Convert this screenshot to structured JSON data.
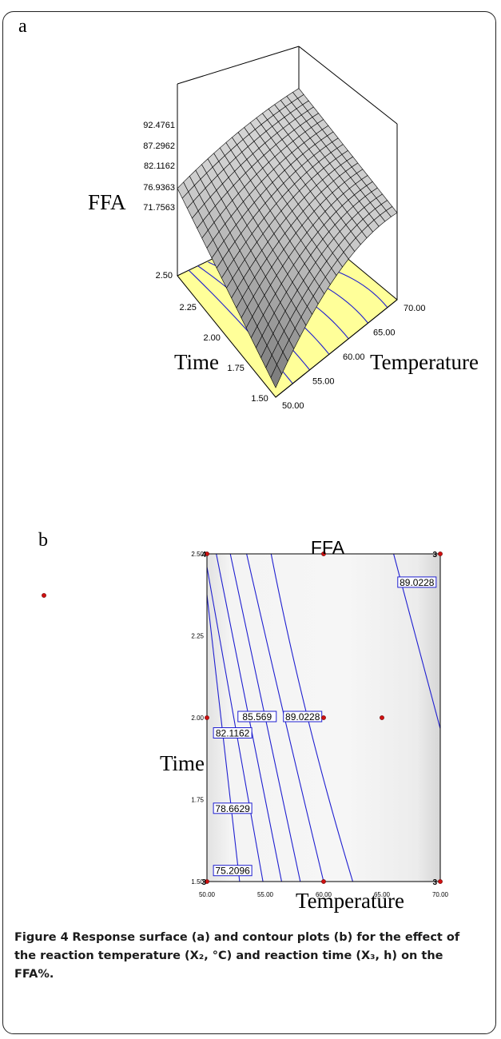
{
  "panel_a_label": "a",
  "panel_b_label": "b",
  "caption": {
    "figure_label": "Figure 4",
    "text": "Response surface (a) and contour plots (b) for the effect of the reaction temperature (X₂, °C) and reaction time (X₃, h) on the FFA%."
  },
  "chart_data": [
    {
      "type": "surface",
      "zlabel": "FFA",
      "xlabel": "Temperature",
      "ylabel": "Time",
      "x_ticks": [
        "50.00",
        "55.00",
        "60.00",
        "65.00",
        "70.00"
      ],
      "y_ticks": [
        "1.50",
        "1.75",
        "2.00",
        "2.25",
        "2.50"
      ],
      "z_ticks": [
        "71.7563",
        "76.9363",
        "82.1162",
        "87.2962",
        "92.4761"
      ],
      "xlim": [
        50,
        70
      ],
      "ylim": [
        1.5,
        2.5
      ],
      "zlim": [
        71.7563,
        92.4761
      ],
      "surface_color": "#a9a9a9",
      "floor_color": "#ffff99",
      "contour_color": "#1f1fd0"
    },
    {
      "type": "contour",
      "title": "FFA",
      "xlabel": "Temperature",
      "ylabel": "Time",
      "x_ticks": [
        "50.00",
        "55.00",
        "60.00",
        "65.00",
        "70.00"
      ],
      "y_ticks": [
        "1.50",
        "1.75",
        "2.00",
        "2.25",
        "2.50"
      ],
      "xlim": [
        50,
        70
      ],
      "ylim": [
        1.5,
        2.5
      ],
      "contour_labels": [
        "75.2096",
        "78.6629",
        "82.1162",
        "85.569",
        "89.0228",
        "89.0228"
      ],
      "design_points": [
        {
          "x": 50,
          "y": 2.5,
          "count": "4"
        },
        {
          "x": 60,
          "y": 2.5
        },
        {
          "x": 70,
          "y": 2.5,
          "count": "3"
        },
        {
          "x": 50,
          "y": 2.0
        },
        {
          "x": 60,
          "y": 2.0
        },
        {
          "x": 65,
          "y": 2.0
        },
        {
          "x": 50,
          "y": 1.5,
          "count": "3"
        },
        {
          "x": 60,
          "y": 1.5
        },
        {
          "x": 70,
          "y": 1.5,
          "count": "3"
        }
      ],
      "line_color": "#1f1fd0",
      "point_color": "#d01010"
    }
  ]
}
